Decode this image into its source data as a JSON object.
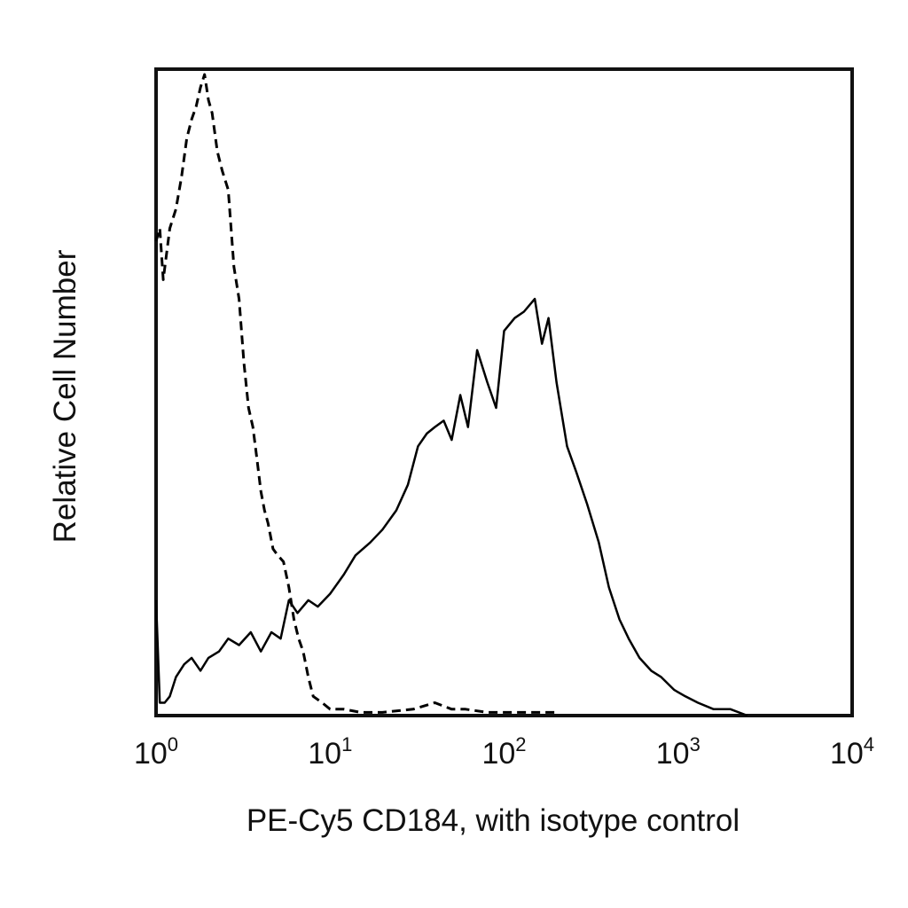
{
  "chart_data": {
    "type": "line",
    "title": "",
    "xlabel": "PE-Cy5 CD184, with isotype control",
    "ylabel": "Relative Cell Number",
    "x_scale": "log",
    "xlim": [
      1,
      10000
    ],
    "ylim": [
      0,
      100
    ],
    "grid": false,
    "legend": "none",
    "x_ticks": [
      {
        "value": 1,
        "base": "10",
        "exp": "0"
      },
      {
        "value": 10,
        "base": "10",
        "exp": "1"
      },
      {
        "value": 100,
        "base": "10",
        "exp": "2"
      },
      {
        "value": 1000,
        "base": "10",
        "exp": "3"
      },
      {
        "value": 10000,
        "base": "10",
        "exp": "4"
      }
    ],
    "series": [
      {
        "style": "solid",
        "color": "#000000",
        "x": [
          1.0,
          1.05,
          1.12,
          1.2,
          1.3,
          1.45,
          1.6,
          1.8,
          2.0,
          2.3,
          2.6,
          3.0,
          3.5,
          4.0,
          4.6,
          5.2,
          5.8,
          6.5,
          7.5,
          8.5,
          10,
          12,
          14,
          17,
          20,
          24,
          28,
          32,
          36,
          40,
          45,
          50,
          56,
          62,
          70,
          80,
          90,
          100,
          115,
          130,
          150,
          165,
          180,
          200,
          230,
          260,
          300,
          350,
          400,
          460,
          520,
          600,
          700,
          800,
          950,
          1100,
          1300,
          1600,
          2000,
          2500
        ],
        "y": [
          18,
          2,
          2,
          3,
          6,
          8,
          9,
          7,
          9,
          10,
          12,
          11,
          13,
          10,
          13,
          12,
          18,
          16,
          18,
          17,
          19,
          22,
          25,
          27,
          29,
          32,
          36,
          42,
          44,
          45,
          46,
          43,
          50,
          45,
          57,
          52,
          48,
          60,
          62,
          63,
          65,
          58,
          62,
          52,
          42,
          38,
          33,
          27,
          20,
          15,
          12,
          9,
          7,
          6,
          4,
          3,
          2,
          1,
          1,
          0
        ]
      },
      {
        "style": "dashed",
        "color": "#000000",
        "x": [
          1.0,
          1.05,
          1.1,
          1.2,
          1.3,
          1.4,
          1.5,
          1.6,
          1.7,
          1.8,
          1.9,
          2.0,
          2.1,
          2.25,
          2.4,
          2.6,
          2.8,
          3.0,
          3.2,
          3.4,
          3.6,
          3.8,
          4.0,
          4.2,
          4.4,
          4.7,
          5.0,
          5.4,
          5.8,
          6.2,
          6.6,
          7.0,
          7.5,
          8.0,
          9.0,
          10,
          12,
          15,
          20,
          30,
          40,
          50,
          60,
          80,
          100,
          150,
          200
        ],
        "y": [
          74,
          76,
          68,
          76,
          79,
          84,
          90,
          93,
          95,
          98,
          100,
          96,
          94,
          88,
          85,
          82,
          70,
          65,
          55,
          48,
          45,
          40,
          35,
          32,
          30,
          26,
          25,
          24,
          20,
          15,
          12,
          10,
          6,
          3,
          2,
          1,
          1,
          0.5,
          0.5,
          1,
          2,
          1,
          1,
          0.5,
          0.5,
          0.5,
          0.5
        ]
      }
    ]
  }
}
